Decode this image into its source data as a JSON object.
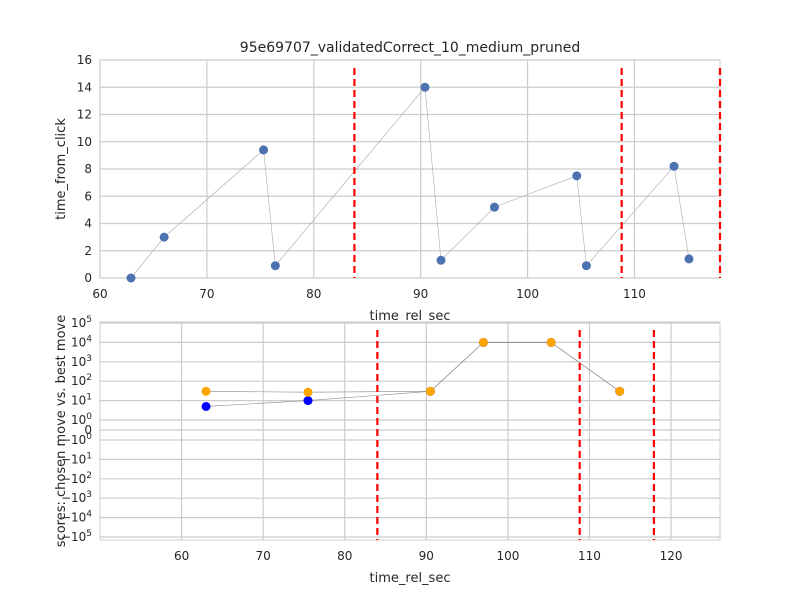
{
  "chart_data": [
    {
      "type": "scatter",
      "title": "95e69707_validatedCorrect_10_medium_pruned",
      "xlabel": "time_rel_sec",
      "ylabel": "time_from_click",
      "xlim": [
        60,
        118
      ],
      "ylim": [
        0,
        16
      ],
      "xticks": [
        "60",
        "70",
        "80",
        "90",
        "100",
        "110"
      ],
      "yticks": [
        "0",
        "2",
        "4",
        "6",
        "8",
        "10",
        "12",
        "14",
        "16"
      ],
      "grid": true,
      "connected": true,
      "marker_color": "#4c72b0",
      "line_color": "#aaaaaa",
      "vline_color": "#ff0000",
      "points": [
        {
          "x": 62.9,
          "y": 0.0
        },
        {
          "x": 66.0,
          "y": 3.0
        },
        {
          "x": 75.3,
          "y": 9.4
        },
        {
          "x": 76.4,
          "y": 0.9
        },
        {
          "x": 90.4,
          "y": 14.0
        },
        {
          "x": 91.9,
          "y": 1.3
        },
        {
          "x": 96.9,
          "y": 5.2
        },
        {
          "x": 104.6,
          "y": 7.5
        },
        {
          "x": 105.5,
          "y": 0.9
        },
        {
          "x": 113.7,
          "y": 8.2
        },
        {
          "x": 115.1,
          "y": 1.4
        }
      ],
      "vlines": [
        83.8,
        108.8,
        118.0
      ]
    },
    {
      "type": "scatter",
      "title": "",
      "xlabel": "time_rel_sec",
      "ylabel": "scores: chosen move vs. best move",
      "xlim": [
        50,
        126
      ],
      "yscale": "symlog",
      "xticks": [
        "60",
        "70",
        "80",
        "90",
        "100",
        "110",
        "120"
      ],
      "yticks_positive": [
        "10^5",
        "10^4",
        "10^3",
        "10^2",
        "10^1",
        "10^0",
        "0"
      ],
      "yticks_negative": [
        "−10^0",
        "−10^1",
        "−10^2",
        "−10^3",
        "−10^4",
        "−10^5"
      ],
      "grid": true,
      "line_color": "#888888",
      "vline_color": "#ff0000",
      "series": [
        {
          "color": "#0000ff",
          "points": [
            {
              "x": 63.0,
              "y": 5
            },
            {
              "x": 75.5,
              "y": 10
            },
            {
              "x": 90.5,
              "y": 30
            },
            {
              "x": 97.0,
              "y": 10000
            },
            {
              "x": 105.3,
              "y": 10000
            },
            {
              "x": 113.7,
              "y": 30
            }
          ]
        },
        {
          "color": "#ffa500",
          "points": [
            {
              "x": 63.0,
              "y": 30
            },
            {
              "x": 75.5,
              "y": 27
            },
            {
              "x": 90.5,
              "y": 30
            },
            {
              "x": 97.0,
              "y": 10000
            },
            {
              "x": 105.3,
              "y": 10000
            },
            {
              "x": 113.7,
              "y": 30
            }
          ]
        }
      ],
      "vlines": [
        84.0,
        108.8,
        117.9
      ]
    }
  ]
}
